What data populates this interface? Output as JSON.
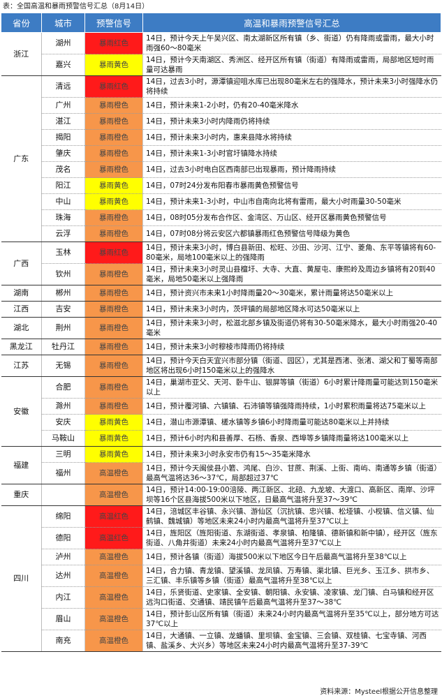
{
  "title": "表：全国高温和暴雨预警信号汇总（8月14日）",
  "table": {
    "header": [
      "省份",
      "城市",
      "预警信号",
      "高温和暴雨预警信号汇总"
    ],
    "groups": [
      {
        "province": "浙江",
        "rows": [
          {
            "city": "湖州",
            "signal": "暴雨红色",
            "color": "#ff1a1a",
            "text": "14日，预计今天上午吴兴区、南太湖新区所有镇（乡、街道）仍有降雨或雷雨，最大小时雨强60～80毫米"
          },
          {
            "city": "嘉兴",
            "signal": "暴雨黄色",
            "color": "#ffff00",
            "text": "14日，预计今天南湖区、秀洲区、经开区所有镇（街道）有降雨或雷雨，局部地区短时雨量可达暴雨"
          }
        ]
      },
      {
        "province": "广东",
        "rows": [
          {
            "city": "清远",
            "signal": "暴雨红色",
            "color": "#ff1a1a",
            "text": "14日，过去3小时，源潭镇迎咀水库已出现80毫米左右的强降水，预计未来3小时强降水仍将持续"
          },
          {
            "city": "广州",
            "signal": "暴雨橙色",
            "color": "#f7964a",
            "text": "14日，预计未来1-2小时，仍有20-40毫米降水"
          },
          {
            "city": "湛江",
            "signal": "暴雨橙色",
            "color": "#f7964a",
            "text": "14日，预计未来3小时内降雨仍将持续"
          },
          {
            "city": "揭阳",
            "signal": "暴雨橙色",
            "color": "#f7964a",
            "text": "14日，预计未来3小时内，惠来县降水将持续"
          },
          {
            "city": "肇庆",
            "signal": "暴雨橙色",
            "color": "#f7964a",
            "text": "14日，预计未来1-3小时官圩镇降水持续"
          },
          {
            "city": "茂名",
            "signal": "暴雨橙色",
            "color": "#f7964a",
            "text": "14日，过去3小时电白区西南部已出现暴雨，预计降雨持续"
          },
          {
            "city": "阳江",
            "signal": "暴雨黄色",
            "color": "#ffff00",
            "text": "14日，07时24分发布阳春市暴雨黄色预警信号"
          },
          {
            "city": "中山",
            "signal": "暴雨黄色",
            "color": "#ffff00",
            "text": "14日，预计未来1-3小时，中山市自南向北将有雷雨，最大小时雨量30-50毫米"
          },
          {
            "city": "珠海",
            "signal": "暴雨橙色",
            "color": "#f7964a",
            "text": "14日，08时05分发布合作区、金湾区、万山区、经开区暴雨黄色预警信号"
          },
          {
            "city": "云浮",
            "signal": "暴雨橙色",
            "color": "#f7964a",
            "text": "14日，07时08分将云安区六都镇暴雨红色预警信号降级为黄色"
          }
        ]
      },
      {
        "province": "广西",
        "rows": [
          {
            "city": "玉林",
            "signal": "暴雨红色",
            "color": "#ff1a1a",
            "text": "14日，预计未来3小时，博白县新田、松旺、沙田、沙河、江宁、菱角、东平等镇将有60-80毫米，局地100毫米以上的强降雨"
          },
          {
            "city": "钦州",
            "signal": "暴雨橙色",
            "color": "#f7964a",
            "text": "14日，预计未来3小时灵山县檀圩、大寺、大直、黄屋屯、康熙岭及周边乡镇将有20到40毫米，局地50毫米以上强降雨"
          }
        ]
      },
      {
        "province": "湖南",
        "rows": [
          {
            "city": "郴州",
            "signal": "暴雨橙色",
            "color": "#f7964a",
            "text": "14日，预计资兴市未来1小时降雨量20～30毫米，累计雨量将达50毫米以上"
          }
        ]
      },
      {
        "province": "江西",
        "rows": [
          {
            "city": "吉安",
            "signal": "暴雨橙色",
            "color": "#f7964a",
            "text": "14日，预计未来3小时内，茨坪镇的局部地区降水可达50毫米以上"
          }
        ]
      },
      {
        "province": "湖北",
        "rows": [
          {
            "city": "荆州",
            "signal": "暴雨橙色",
            "color": "#f7964a",
            "text": "14日，预计未来3小时，松滋北部乡镇及街道仍将有30-50毫米降水，最大小时雨强20-40毫米"
          }
        ]
      },
      {
        "province": "黑龙江",
        "rows": [
          {
            "city": "牡丹江",
            "signal": "暴雨橙色",
            "color": "#f7964a",
            "text": "14日，预计未来3小时穆棱市降雨仍将持续"
          }
        ]
      },
      {
        "province": "江苏",
        "rows": [
          {
            "city": "无锡",
            "signal": "暴雨橙色",
            "color": "#f7964a",
            "text": "14日，预计今天白天宜兴市部分镇（街道、园区），尤其是西渚、张渚、湖父和丁蜀等南部地区将出现6小时150毫米以上的强降水"
          }
        ]
      },
      {
        "province": "安徽",
        "rows": [
          {
            "city": "合肥",
            "signal": "暴雨橙色",
            "color": "#f7964a",
            "text": "14日，巢湖市亚父、天河、卧牛山、银屏等镇（街道）6小时累计降雨量可能达到150毫米以上"
          },
          {
            "city": "滁州",
            "signal": "暴雨橙色",
            "color": "#f7964a",
            "text": "14日，预计覆河镇、六镇镇、石沛镇等镇强降雨持续，1小时累积雨量将达75毫米以上"
          },
          {
            "city": "安庆",
            "signal": "暴雨黄色",
            "color": "#ffff00",
            "text": "14日，潜山市源潭镇、槎水镇等乡镇6小时降雨量可能达80毫米以上并持续"
          },
          {
            "city": "马鞍山",
            "signal": "暴雨黄色",
            "color": "#ffff00",
            "text": "14日，预计6小时内和县善厚、石杨、香泉、西埠等乡镇降雨量将达100毫米以上"
          }
        ]
      },
      {
        "province": "福建",
        "rows": [
          {
            "city": "三明",
            "signal": "暴雨黄色",
            "color": "#ffff00",
            "text": "14日，预计未来3小时永安市仍有15～35毫米降水"
          },
          {
            "city": "福州",
            "signal": "高温橙色",
            "color": "#f7964a",
            "text": "14日，预计今天闽侯县小箬、鸿尾、白沙、甘蔗、荆溪、上街、南屿、南通等乡镇（街道）最高气温将达36～37℃，局部超过37℃"
          }
        ]
      },
      {
        "province": "重庆",
        "rows": [
          {
            "signal": "高温橙色",
            "color": "#f7964a",
            "text": "14日，预计14:00-19:00涪陵、两江新区、北碚、九龙坡、大渡口、高新区、南岸、沙坪坝等16个区县海拔500米以下地区，日最高气温将升至37～39℃"
          }
        ]
      },
      {
        "province": "四川",
        "rows": [
          {
            "city": "绵阳",
            "signal": "高温红色",
            "color": "#ff1a1a",
            "text": "14日，涪城区丰谷镇、永兴镇、游仙区（沉抗镇、忠兴镇、松垭镇、小枧镇、信义镇、仙鹤镇、魏城镇）等地区未来24小时内最高气温将升至37℃以上"
          },
          {
            "city": "德阳",
            "signal": "高温红色",
            "color": "#ff1a1a",
            "text": "14日，旌阳区（旌阳街道、东湖街道、孝泉镇、柏隆镇、德新镇和新中镇），经开区（旌东街道、八角井街道）未来24小时内最高气温将升至37℃以上"
          },
          {
            "city": "泸州",
            "signal": "高温橙色",
            "color": "#f7964a",
            "text": "14日，预计各镇（街道）海拔500米以下地区今日午后最高气温将升至38℃以上"
          },
          {
            "city": "达州",
            "signal": "高温橙色",
            "color": "#f7964a",
            "text": "14日，合力镇、青龙镇、望溪镇、龙凤镇、万寿镇、渠北镇、巨光乡、玉江乡、拱市乡、三汇镇、丰乐镇等乡镇（街道）最高气温将升至38℃以上"
          },
          {
            "city": "内江",
            "signal": "高温橙色",
            "color": "#f7964a",
            "text": "14日，乐贤街道、史家镇、全安镇、朝阳镇、永安镇、凌家镇、龙门镇、白马镇和经开区远沟口街道、交通镇、靖民镇午后最高气温将升至37～38℃"
          },
          {
            "city": "眉山",
            "signal": "高温橙色",
            "color": "#f7964a",
            "text": "14日，预计彭山区所有镇（街道）未来24小时内最高气温将升至35℃以上，部分地方可达37℃以上"
          },
          {
            "city": "南充",
            "signal": "高温橙色",
            "color": "#f7964a",
            "text": "14日，大通镇、一立镇、龙蟠镇、里坝镇、金宝镇、三会镇、双桂镇、七宝寺镇、河西镇、盐溪乡、大兴乡）等地区未来24小时内最高气温将升至37-39℃"
          }
        ]
      }
    ]
  },
  "source": "资料来源：Mysteel根据公开信息整理"
}
